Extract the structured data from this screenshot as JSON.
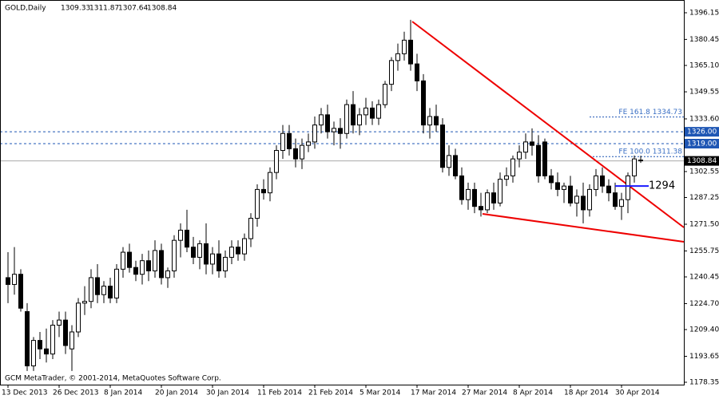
{
  "chart_data": {
    "type": "candlestick",
    "title": "GOLD,Daily",
    "footer": "GCM MetaTrader, © 2001-2014, MetaQuotes Software Corp.",
    "categories": [
      "13 Dec 2013",
      null,
      null,
      null,
      null,
      null,
      null,
      null,
      "26 Dec 2013",
      null,
      null,
      null,
      null,
      null,
      null,
      null,
      "8 Jan 2014",
      null,
      null,
      null,
      null,
      null,
      null,
      null,
      "20 Jan 2014",
      null,
      null,
      null,
      null,
      null,
      null,
      null,
      "30 Jan 2014",
      null,
      null,
      null,
      null,
      null,
      null,
      null,
      "11 Feb 2014",
      null,
      null,
      null,
      null,
      null,
      null,
      null,
      "21 Feb 2014",
      null,
      null,
      null,
      null,
      null,
      null,
      null,
      "5 Mar 2014",
      null,
      null,
      null,
      null,
      null,
      null,
      null,
      "17 Mar 2014",
      null,
      null,
      null,
      null,
      null,
      null,
      null,
      "27 Mar 2014",
      null,
      null,
      null,
      null,
      null,
      null,
      null,
      "8 Apr 2014",
      null,
      null,
      null,
      null,
      null,
      null,
      null,
      "18 Apr 2014",
      null,
      null,
      null,
      null,
      null,
      null,
      null,
      "30 Apr 2014",
      null,
      null,
      null
    ],
    "open": [
      1240,
      1236,
      1242,
      1220,
      1188,
      1203,
      1198,
      1195,
      1212,
      1215,
      1198,
      1208,
      1225,
      1226,
      1240,
      1230,
      1235,
      1228,
      1245,
      1255,
      1246,
      1242,
      1250,
      1244,
      1256,
      1240,
      1244,
      1262,
      1268,
      1258,
      1252,
      1260,
      1248,
      1254,
      1244,
      1252,
      1258,
      1254,
      1263,
      1275,
      1292,
      1290,
      1302,
      1315,
      1325,
      1316,
      1310,
      1318,
      1320,
      1330,
      1336,
      1326,
      1328,
      1325,
      1342,
      1330,
      1336,
      1340,
      1334,
      1342,
      1354,
      1368,
      1372,
      1380,
      1366,
      1356,
      1330,
      1335,
      1330,
      1305,
      1312,
      1300,
      1286,
      1292,
      1282,
      1280,
      1290,
      1284,
      1298,
      1300,
      1310,
      1314,
      1320,
      1318,
      1320,
      1300,
      1296,
      1292,
      1294,
      1284,
      1288,
      1280,
      1292,
      1300,
      1294,
      1290,
      1282,
      1286,
      1300,
      1309.33
    ],
    "high": [
      1255,
      1258,
      1245,
      1225,
      1205,
      1208,
      1210,
      1215,
      1220,
      1220,
      1212,
      1228,
      1235,
      1245,
      1248,
      1238,
      1240,
      1248,
      1258,
      1260,
      1250,
      1254,
      1256,
      1262,
      1260,
      1246,
      1265,
      1272,
      1280,
      1264,
      1262,
      1272,
      1258,
      1262,
      1256,
      1262,
      1262,
      1266,
      1278,
      1295,
      1298,
      1305,
      1318,
      1330,
      1330,
      1322,
      1322,
      1325,
      1335,
      1340,
      1342,
      1332,
      1334,
      1345,
      1350,
      1340,
      1346,
      1344,
      1345,
      1356,
      1370,
      1378,
      1385,
      1392,
      1372,
      1360,
      1340,
      1342,
      1334,
      1318,
      1316,
      1305,
      1296,
      1296,
      1290,
      1292,
      1296,
      1302,
      1305,
      1312,
      1318,
      1325,
      1328,
      1324,
      1322,
      1304,
      1302,
      1296,
      1300,
      1292,
      1296,
      1295,
      1304,
      1305,
      1298,
      1296,
      1290,
      1302,
      1312,
      1311.87
    ],
    "low": [
      1225,
      1230,
      1220,
      1185,
      1185,
      1192,
      1190,
      1192,
      1205,
      1195,
      1185,
      1205,
      1218,
      1222,
      1225,
      1225,
      1225,
      1225,
      1240,
      1243,
      1238,
      1236,
      1238,
      1240,
      1236,
      1234,
      1240,
      1252,
      1255,
      1248,
      1245,
      1242,
      1242,
      1240,
      1240,
      1248,
      1250,
      1250,
      1258,
      1270,
      1286,
      1285,
      1298,
      1310,
      1312,
      1305,
      1304,
      1314,
      1316,
      1325,
      1322,
      1318,
      1316,
      1322,
      1325,
      1324,
      1330,
      1330,
      1330,
      1340,
      1350,
      1362,
      1368,
      1362,
      1350,
      1325,
      1322,
      1326,
      1302,
      1300,
      1298,
      1283,
      1280,
      1278,
      1276,
      1278,
      1280,
      1282,
      1294,
      1296,
      1305,
      1310,
      1312,
      1296,
      1298,
      1292,
      1288,
      1284,
      1282,
      1276,
      1272,
      1276,
      1288,
      1290,
      1285,
      1280,
      1274,
      1278,
      1296,
      1307.64
    ],
    "close": [
      1236,
      1242,
      1222,
      1188,
      1203,
      1198,
      1195,
      1212,
      1215,
      1200,
      1208,
      1225,
      1226,
      1240,
      1230,
      1235,
      1228,
      1245,
      1255,
      1246,
      1242,
      1250,
      1244,
      1256,
      1240,
      1244,
      1262,
      1268,
      1258,
      1252,
      1260,
      1248,
      1254,
      1244,
      1252,
      1258,
      1254,
      1263,
      1275,
      1292,
      1290,
      1302,
      1315,
      1325,
      1316,
      1310,
      1318,
      1320,
      1330,
      1336,
      1326,
      1328,
      1325,
      1342,
      1330,
      1336,
      1340,
      1334,
      1342,
      1354,
      1368,
      1372,
      1380,
      1366,
      1356,
      1330,
      1335,
      1330,
      1305,
      1312,
      1300,
      1286,
      1292,
      1282,
      1280,
      1290,
      1284,
      1298,
      1300,
      1310,
      1314,
      1320,
      1318,
      1300,
      1300,
      1296,
      1292,
      1294,
      1284,
      1288,
      1280,
      1292,
      1300,
      1294,
      1290,
      1282,
      1286,
      1300,
      1310,
      1308.84
    ],
    "ylim": [
      1176.94,
      1403.68
    ],
    "yticks": [
      1396.15,
      1380.45,
      {
        "value": 1365.1,
        "label": "1365.10"
      },
      1349.55,
      {
        "value": 1333.6,
        "label": "1333.60"
      },
      1302.55,
      1287.25,
      {
        "value": 1271.5,
        "label": "1271.50"
      },
      1255.75,
      1240.45,
      {
        "value": 1224.7,
        "label": "1224.70"
      },
      {
        "value": 1209.4,
        "label": "1209.40"
      },
      1193.65,
      1178.35
    ],
    "levels": [
      {
        "value": 1326,
        "label": "1326.00"
      },
      {
        "value": 1319,
        "label": "1319.00"
      }
    ],
    "fibo": [
      {
        "value": 1334.73,
        "label": "FE 161.8 1334.73"
      },
      {
        "value": 1311.38,
        "label": "FE 100.0 1311.38"
      }
    ],
    "current_price": 1308.84,
    "annotation": 1294
  }
}
